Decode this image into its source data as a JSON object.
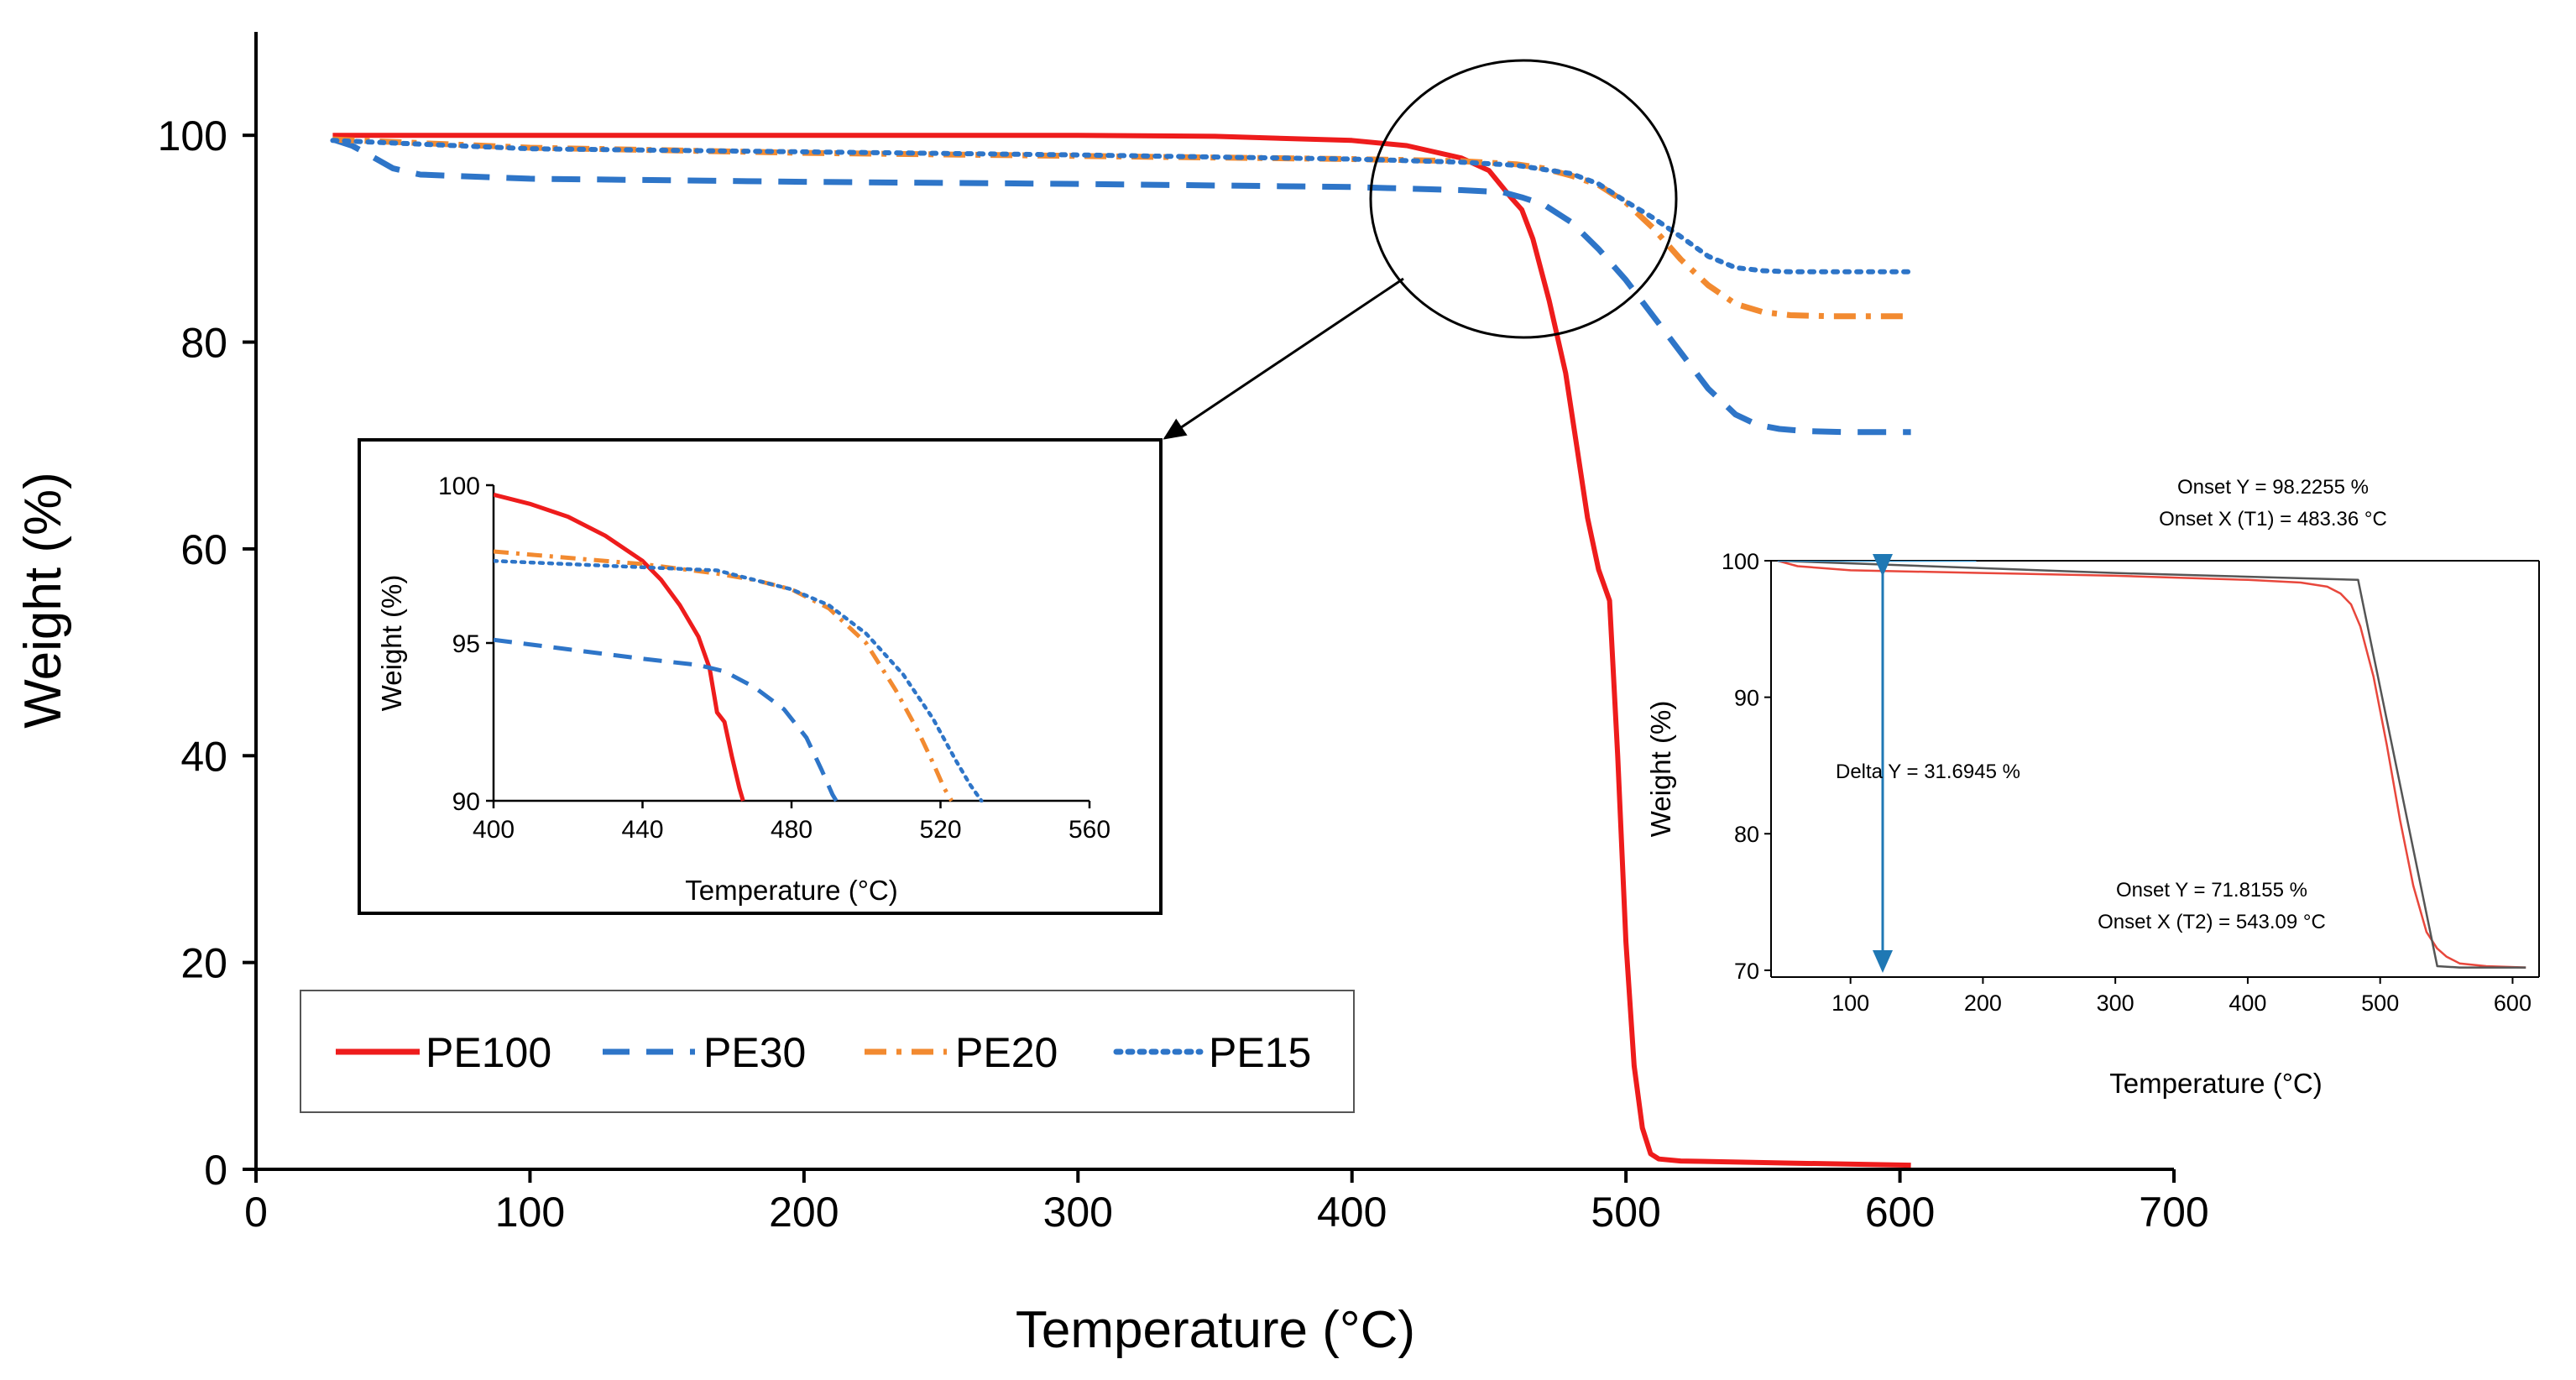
{
  "chart_data": [
    {
      "type": "line",
      "xlabel": "Temperature (°C)",
      "ylabel": "Weight (%)",
      "xlim": [
        0,
        700
      ],
      "ylim": [
        0,
        110
      ],
      "xticks": [
        0,
        100,
        200,
        300,
        400,
        500,
        600,
        700
      ],
      "yticks": [
        0,
        20,
        40,
        60,
        80,
        100
      ],
      "legend": {
        "placement": "bottom-left",
        "entries": [
          "PE100",
          "PE30",
          "PE20",
          "PE15"
        ]
      },
      "series": [
        {
          "name": "PE100",
          "color": "#ee1c1c",
          "style": "solid",
          "x": [
            28,
            100,
            200,
            300,
            350,
            400,
            420,
            440,
            450,
            458,
            462,
            466,
            472,
            478,
            482,
            486,
            490,
            494,
            497,
            500,
            503,
            506,
            509,
            512,
            520,
            560,
            604
          ],
          "y": [
            100,
            100,
            100,
            100,
            99.9,
            99.5,
            99.0,
            97.8,
            96.6,
            94.0,
            92.8,
            90.0,
            84.0,
            77.0,
            70.0,
            63.0,
            58.0,
            55.0,
            40.0,
            22.0,
            10.0,
            4.0,
            1.5,
            1.0,
            0.8,
            0.6,
            0.4
          ]
        },
        {
          "name": "PE30",
          "color": "#2e75c8",
          "style": "dashed",
          "x": [
            28,
            35,
            42,
            50,
            60,
            100,
            200,
            300,
            400,
            440,
            455,
            462,
            470,
            480,
            490,
            500,
            510,
            520,
            530,
            540,
            548,
            556,
            565,
            580,
            604
          ],
          "y": [
            99.6,
            99.0,
            98.0,
            96.8,
            96.2,
            95.8,
            95.5,
            95.3,
            95.0,
            94.7,
            94.5,
            94.0,
            93.3,
            91.6,
            89.0,
            86.0,
            82.5,
            79.0,
            75.5,
            73.0,
            72.0,
            71.6,
            71.4,
            71.3,
            71.3
          ]
        },
        {
          "name": "PE20",
          "color": "#f28a30",
          "style": "dashdot",
          "x": [
            28,
            100,
            200,
            300,
            400,
            440,
            460,
            470,
            480,
            490,
            500,
            510,
            520,
            530,
            540,
            550,
            560,
            575,
            604
          ],
          "y": [
            99.6,
            98.8,
            98.3,
            98.0,
            97.7,
            97.5,
            97.2,
            96.8,
            96.1,
            95.2,
            93.5,
            91.0,
            88.0,
            85.5,
            83.7,
            82.9,
            82.6,
            82.5,
            82.5
          ]
        },
        {
          "name": "PE15",
          "color": "#2e75c8",
          "style": "dotted",
          "x": [
            28,
            100,
            200,
            300,
            400,
            440,
            460,
            480,
            490,
            500,
            510,
            520,
            530,
            540,
            550,
            560,
            575,
            604
          ],
          "y": [
            99.5,
            98.7,
            98.4,
            98.1,
            97.7,
            97.4,
            97.1,
            96.3,
            95.3,
            93.6,
            92.0,
            90.2,
            88.3,
            87.2,
            86.9,
            86.8,
            86.8,
            86.8
          ]
        }
      ]
    },
    {
      "type": "line",
      "xlabel": "Temperature (°C)",
      "ylabel": "Weight (%)",
      "xlim": [
        400,
        560
      ],
      "ylim": [
        90,
        100
      ],
      "xticks": [
        400,
        440,
        480,
        520,
        560
      ],
      "yticks": [
        90,
        95,
        100
      ],
      "series": [
        {
          "name": "PE100",
          "color": "#ee1c1c",
          "style": "solid",
          "x": [
            400,
            410,
            420,
            430,
            440,
            445,
            450,
            455,
            458,
            460,
            462,
            464,
            466,
            467
          ],
          "y": [
            99.7,
            99.4,
            99.0,
            98.4,
            97.6,
            97.0,
            96.2,
            95.2,
            94.2,
            92.8,
            92.5,
            91.4,
            90.4,
            90.0
          ]
        },
        {
          "name": "PE30",
          "color": "#2e75c8",
          "style": "dashed",
          "x": [
            400,
            420,
            440,
            455,
            462,
            470,
            478,
            484,
            488,
            491,
            492
          ],
          "y": [
            95.1,
            94.8,
            94.5,
            94.3,
            94.1,
            93.6,
            92.9,
            92.0,
            91.0,
            90.2,
            90.0
          ]
        },
        {
          "name": "PE20",
          "color": "#f28a30",
          "style": "dashdot",
          "x": [
            400,
            420,
            440,
            460,
            470,
            480,
            490,
            500,
            508,
            514,
            518,
            521,
            523
          ],
          "y": [
            97.9,
            97.7,
            97.5,
            97.2,
            97.0,
            96.7,
            96.1,
            95.0,
            93.5,
            92.2,
            91.2,
            90.4,
            90.0
          ]
        },
        {
          "name": "PE15",
          "color": "#2e75c8",
          "style": "dotted",
          "x": [
            400,
            420,
            440,
            460,
            480,
            490,
            500,
            510,
            518,
            524,
            528,
            531
          ],
          "y": [
            97.6,
            97.5,
            97.4,
            97.3,
            96.7,
            96.2,
            95.3,
            94.0,
            92.6,
            91.3,
            90.5,
            90.0
          ]
        }
      ]
    },
    {
      "type": "line",
      "xlabel": "Temperature (°C)",
      "ylabel": "Weight (%)",
      "xlim": [
        40,
        620
      ],
      "ylim": [
        69.5,
        100
      ],
      "xticks": [
        100,
        200,
        300,
        400,
        500,
        600
      ],
      "yticks": [
        70,
        80,
        90,
        100
      ],
      "annotations": {
        "onset_y1": "Onset Y = 98.2255 %",
        "onset_x1": "Onset X (T1) = 483.36 °C",
        "delta_y": "Delta Y = 31.6945 %",
        "onset_y2": "Onset Y = 71.8155 %",
        "onset_x2": "Onset X (T2) = 543.09 °C"
      },
      "series": [
        {
          "name": "",
          "color": "#e8473c",
          "style": "solid",
          "x": [
            45,
            60,
            100,
            200,
            300,
            400,
            440,
            460,
            470,
            478,
            485,
            495,
            505,
            515,
            525,
            535,
            543,
            550,
            560,
            580,
            610
          ],
          "y": [
            100,
            99.6,
            99.3,
            99.1,
            98.9,
            98.6,
            98.4,
            98.1,
            97.6,
            96.8,
            95.2,
            91.5,
            86.5,
            81.0,
            76.2,
            72.8,
            71.6,
            71.0,
            70.5,
            70.3,
            70.2
          ]
        },
        {
          "name": "",
          "color": "#555555",
          "style": "solid",
          "x": [
            45,
            300,
            483.36,
            543.09,
            560,
            610
          ],
          "y": [
            100,
            99.1,
            98.6,
            70.3,
            70.2,
            70.2
          ]
        },
        {
          "name": "",
          "color": "#2f8ec8",
          "style": "solid",
          "x": [
            45,
            195
          ],
          "y": [
            100,
            100
          ]
        }
      ]
    }
  ]
}
